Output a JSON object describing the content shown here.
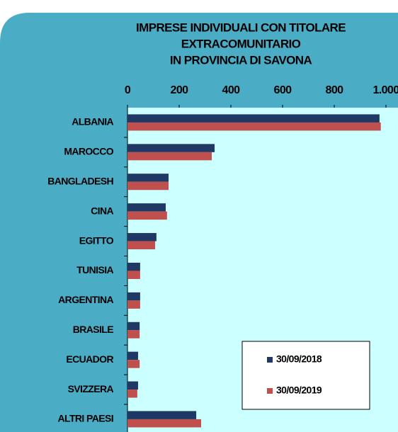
{
  "chart_data": {
    "type": "hbar",
    "title": [
      "IMPRESE INDIVIDUALI CON TITOLARE",
      "EXTRACOMUNITARIO",
      "IN PROVINCIA DI SAVONA"
    ],
    "categories": [
      "ALBANIA",
      "MAROCCO",
      "BANGLADESH",
      "CINA",
      "EGITTO",
      "TUNISIA",
      "ARGENTINA",
      "BRASILE",
      "ECUADOR",
      "SVIZZERA",
      "ALTRI PAESI"
    ],
    "series": [
      {
        "name": "30/09/2018",
        "color": "#1f3864",
        "values": [
          975,
          337,
          159,
          148,
          112,
          49,
          49,
          47,
          41,
          41,
          266
        ]
      },
      {
        "name": "30/09/2019",
        "color": "#c0504d",
        "values": [
          980,
          326,
          159,
          153,
          107,
          49,
          49,
          47,
          47,
          38,
          285
        ]
      }
    ],
    "xlim": [
      0,
      1000
    ],
    "xticks": [
      0,
      200,
      400,
      600,
      800,
      {
        "value": 1000,
        "label": "1.000"
      }
    ],
    "legend": "bottom-right"
  }
}
